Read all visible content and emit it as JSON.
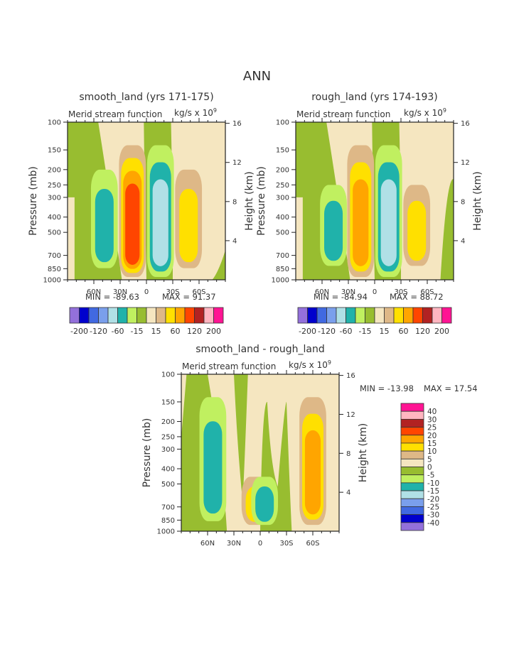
{
  "page": {
    "main_title": "ANN"
  },
  "colormap": {
    "colors": [
      "#9370DB",
      "#0000CD",
      "#4169E1",
      "#7A9FEC",
      "#B0E0E6",
      "#20B2AA",
      "#C0F060",
      "#98BD30",
      "#F5E6C0",
      "#DEB887",
      "#FFE000",
      "#FFA500",
      "#FF4500",
      "#B22222",
      "#FFB6C1",
      "#FF1493"
    ]
  },
  "chart_data": [
    {
      "type": "heatmap",
      "id": "smooth",
      "title": "smooth_land (yrs 171-175)",
      "subtitle_left": "Merid stream function",
      "subtitle_right": "kg/s x 10",
      "subtitle_exp": "9",
      "xlabel": "",
      "ylabel": "Pressure (mb)",
      "ylabel_right": "Height (km)",
      "x_ticks": [
        "60N",
        "30N",
        "0",
        "30S",
        "60S"
      ],
      "x_tick_values": [
        60,
        30,
        0,
        -30,
        -60
      ],
      "xlim": [
        90,
        -90
      ],
      "y_ticks": [
        "100",
        "150",
        "200",
        "250",
        "300",
        "400",
        "500",
        "700",
        "850",
        "1000"
      ],
      "y_tick_values": [
        100,
        150,
        200,
        250,
        300,
        400,
        500,
        700,
        850,
        1000
      ],
      "ylim": [
        100,
        1000
      ],
      "y_right_ticks": [
        "16",
        "12",
        "8",
        "4"
      ],
      "y_right_values": [
        16,
        12,
        8,
        4
      ],
      "min_label": "MIN = -89.63",
      "max_label": "MAX =  91.37",
      "min": -89.63,
      "max": 91.37,
      "contour_levels": [
        -200,
        -160,
        -120,
        -80,
        -60,
        -40,
        -15,
        0,
        15,
        40,
        60,
        80,
        120,
        160,
        200
      ],
      "labelbar_labels": [
        "-200",
        "-120",
        "-60",
        "-15",
        "15",
        "60",
        "120",
        "200"
      ],
      "cells": [
        {
          "name": "cell-60N-neg",
          "center_lat": 48,
          "top_p": 200,
          "bottom_p": 880,
          "levels": [
            6,
            5
          ]
        },
        {
          "name": "cell-30N-pos",
          "center_lat": 16,
          "top_p": 140,
          "bottom_p": 1000,
          "levels": [
            9,
            10,
            11,
            12
          ]
        },
        {
          "name": "cell-eq-neg",
          "center_lat": -16,
          "top_p": 140,
          "bottom_p": 1000,
          "levels": [
            6,
            5,
            4
          ]
        },
        {
          "name": "cell-45S-pos",
          "center_lat": -48,
          "top_p": 200,
          "bottom_p": 880,
          "levels": [
            9,
            10
          ]
        }
      ]
    },
    {
      "type": "heatmap",
      "id": "rough",
      "title": "rough_land (yrs 174-193)",
      "subtitle_left": "Merid stream function",
      "subtitle_right": "kg/s x 10",
      "subtitle_exp": "9",
      "xlabel": "",
      "ylabel": "Pressure (mb)",
      "ylabel_right": "Height (km)",
      "x_ticks": [
        "60N",
        "30N",
        "0",
        "30S",
        "60S"
      ],
      "x_tick_values": [
        60,
        30,
        0,
        -30,
        -60
      ],
      "xlim": [
        90,
        -90
      ],
      "y_ticks": [
        "100",
        "150",
        "200",
        "250",
        "300",
        "400",
        "500",
        "700",
        "850",
        "1000"
      ],
      "y_tick_values": [
        100,
        150,
        200,
        250,
        300,
        400,
        500,
        700,
        850,
        1000
      ],
      "ylim": [
        100,
        1000
      ],
      "y_right_ticks": [
        "16",
        "12",
        "8",
        "4"
      ],
      "y_right_values": [
        16,
        12,
        8,
        4
      ],
      "min_label": "MIN = -84.94",
      "max_label": "MAX =  88.72",
      "min": -84.94,
      "max": 88.72,
      "contour_levels": [
        -200,
        -160,
        -120,
        -80,
        -60,
        -40,
        -15,
        0,
        15,
        40,
        60,
        80,
        120,
        160,
        200
      ],
      "labelbar_labels": [
        "-200",
        "-120",
        "-60",
        "-15",
        "15",
        "60",
        "120",
        "200"
      ],
      "cells": [
        {
          "name": "cell-60N-neg",
          "center_lat": 47,
          "top_p": 250,
          "bottom_p": 850,
          "levels": [
            6,
            5
          ]
        },
        {
          "name": "cell-30N-pos",
          "center_lat": 16,
          "top_p": 140,
          "bottom_p": 1000,
          "levels": [
            9,
            10,
            11
          ]
        },
        {
          "name": "cell-eq-neg",
          "center_lat": -16,
          "top_p": 140,
          "bottom_p": 1000,
          "levels": [
            6,
            5,
            4
          ]
        },
        {
          "name": "cell-45S-pos",
          "center_lat": -48,
          "top_p": 250,
          "bottom_p": 850,
          "levels": [
            9,
            10
          ]
        }
      ]
    },
    {
      "type": "heatmap",
      "id": "diff",
      "title": "smooth_land - rough_land",
      "subtitle_left": "Merid stream function",
      "subtitle_right": "kg/s x 10",
      "subtitle_exp": "9",
      "xlabel": "",
      "ylabel": "Pressure (mb)",
      "ylabel_right": "Height (km)",
      "x_ticks": [
        "60N",
        "30N",
        "0",
        "30S",
        "60S"
      ],
      "x_tick_values": [
        60,
        30,
        0,
        -30,
        -60
      ],
      "xlim": [
        90,
        -90
      ],
      "y_ticks": [
        "100",
        "150",
        "200",
        "250",
        "300",
        "400",
        "500",
        "700",
        "850",
        "1000"
      ],
      "y_tick_values": [
        100,
        150,
        200,
        250,
        300,
        400,
        500,
        700,
        850,
        1000
      ],
      "ylim": [
        100,
        1000
      ],
      "y_right_ticks": [
        "16",
        "12",
        "8",
        "4"
      ],
      "y_right_values": [
        16,
        12,
        8,
        4
      ],
      "min_label": "MIN = -13.98",
      "max_label": "MAX =  17.54",
      "min": -13.98,
      "max": 17.54,
      "contour_levels": [
        -40,
        -30,
        -25,
        -20,
        -15,
        -10,
        -5,
        0,
        5,
        10,
        15,
        20,
        25,
        30,
        40
      ],
      "labelbar_labels": [
        "40",
        "30",
        "25",
        "20",
        "15",
        "10",
        "5",
        "0",
        "-5",
        "-10",
        "-15",
        "-20",
        "-25",
        "-30",
        "-40"
      ],
      "cells": [
        {
          "name": "cell-55N-neg",
          "center_lat": 54,
          "top_p": 140,
          "bottom_p": 900,
          "levels": [
            6,
            5
          ]
        },
        {
          "name": "cell-5N-pos",
          "center_lat": 6,
          "top_p": 450,
          "bottom_p": 950,
          "levels": [
            9,
            10
          ]
        },
        {
          "name": "cell-eq-neg",
          "center_lat": -5,
          "top_p": 450,
          "bottom_p": 950,
          "levels": [
            6,
            5
          ]
        },
        {
          "name": "cell-60S-pos",
          "center_lat": -60,
          "top_p": 140,
          "bottom_p": 950,
          "levels": [
            9,
            10,
            11
          ]
        }
      ]
    }
  ]
}
